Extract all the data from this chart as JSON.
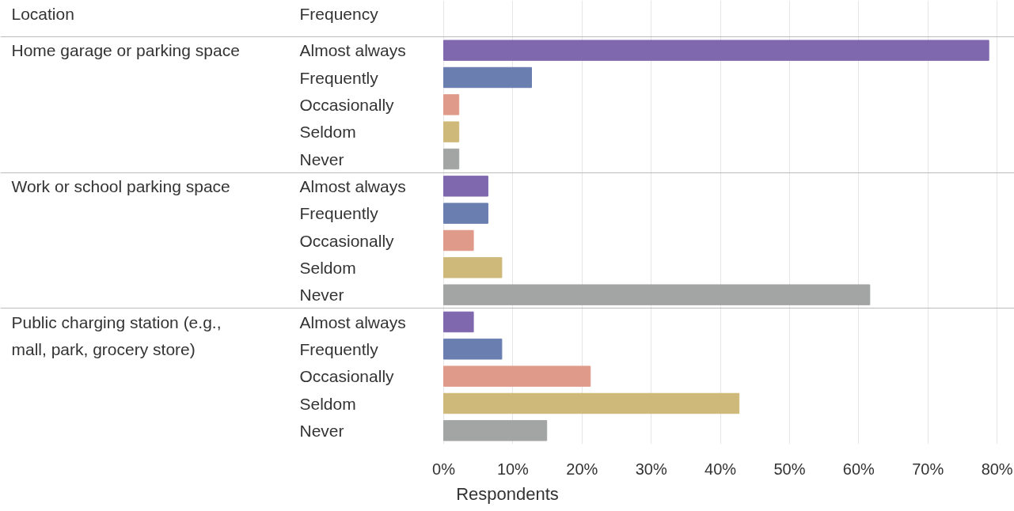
{
  "chart_data": {
    "type": "bar",
    "orientation": "horizontal",
    "xlabel": "Respondents",
    "annotations": [
      "Location",
      "Frequency",
      "Home garage or parking space",
      "Work or school parking space",
      "Public charging station (e.g., mall, park, grocery store)"
    ],
    "categories": [
      "Almost always",
      "Frequently",
      "Occasionally",
      "Seldom",
      "Never",
      "Almost always",
      "Frequently",
      "Occasionally",
      "Seldom",
      "Never",
      "Almost always",
      "Frequently",
      "Occasionally",
      "Seldom",
      "Never"
    ],
    "values": [
      78.8,
      12.7,
      2.2,
      2.2,
      2.2,
      6.4,
      6.4,
      4.3,
      8.4,
      61.6,
      4.3,
      8.4,
      21.2,
      42.7,
      14.9
    ],
    "colors": [
      "#8068ae",
      "#6a7fb0",
      "#e09a8a",
      "#cfb97a",
      "#a3a4a4",
      "#8068ae",
      "#6a7fb0",
      "#e09a8a",
      "#cfb97a",
      "#a3a4a4",
      "#8068ae",
      "#6a7fb0",
      "#e09a8a",
      "#cfb97a",
      "#a3a4a4"
    ],
    "xlim": [
      0,
      82.5
    ],
    "xticks": [
      {
        "value": 0,
        "label": "0%"
      },
      {
        "value": 10,
        "label": "10%"
      },
      {
        "value": 20,
        "label": "20%"
      },
      {
        "value": 30,
        "label": "30%"
      },
      {
        "value": 40,
        "label": "40%"
      },
      {
        "value": 50,
        "label": "50%"
      },
      {
        "value": 60,
        "label": "60%"
      },
      {
        "value": 70,
        "label": "70%"
      },
      {
        "value": 80,
        "label": "80%"
      }
    ],
    "grid": "x"
  }
}
